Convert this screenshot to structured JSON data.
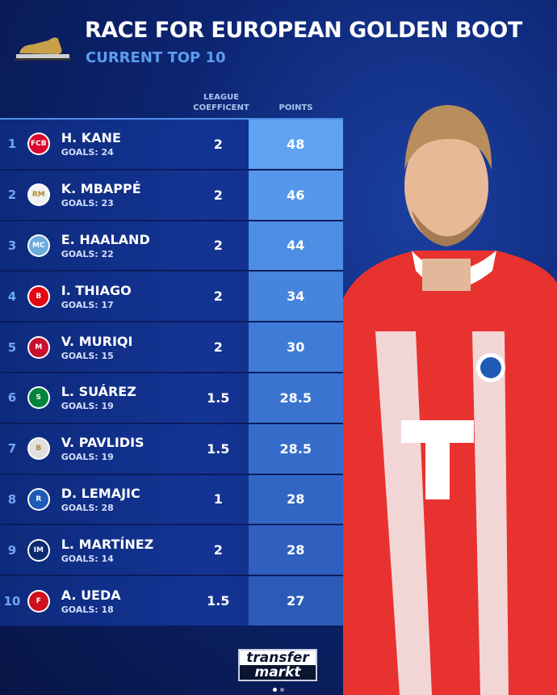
{
  "header": {
    "title": "RACE FOR EUROPEAN GOLDEN BOOT",
    "subtitle": "CURRENT TOP 10"
  },
  "columns": {
    "coefficient": "LEAGUE COEFFICENT",
    "points": "POINTS"
  },
  "rows": [
    {
      "rank": "1",
      "name": "H. KANE",
      "goals": "GOALS: 24",
      "coef": "2",
      "points": "48",
      "crest": "#dc052d",
      "crest_text": "FCB"
    },
    {
      "rank": "2",
      "name": "K. MBAPPÉ",
      "goals": "GOALS: 23",
      "coef": "2",
      "points": "46",
      "crest": "#f2f2f2",
      "crest_text": "RM"
    },
    {
      "rank": "3",
      "name": "E. HAALAND",
      "goals": "GOALS: 22",
      "coef": "2",
      "points": "44",
      "crest": "#6cabdd",
      "crest_text": "MC"
    },
    {
      "rank": "4",
      "name": "I. THIAGO",
      "goals": "GOALS: 17",
      "coef": "2",
      "points": "34",
      "crest": "#e30613",
      "crest_text": "B"
    },
    {
      "rank": "5",
      "name": "V. MURIQI",
      "goals": "GOALS: 15",
      "coef": "2",
      "points": "30",
      "crest": "#c8102e",
      "crest_text": "M"
    },
    {
      "rank": "6",
      "name": "L. SUÁREZ",
      "goals": "GOALS: 19",
      "coef": "1.5",
      "points": "28.5",
      "crest": "#00843d",
      "crest_text": "S"
    },
    {
      "rank": "7",
      "name": "V. PAVLIDIS",
      "goals": "GOALS: 19",
      "coef": "1.5",
      "points": "28.5",
      "crest": "#e0e0e0",
      "crest_text": "B"
    },
    {
      "rank": "8",
      "name": "D. LEMAJIC",
      "goals": "GOALS: 28",
      "coef": "1",
      "points": "28",
      "crest": "#1e5bb8",
      "crest_text": "R"
    },
    {
      "rank": "9",
      "name": "L. MARTÍNEZ",
      "goals": "GOALS: 14",
      "coef": "2",
      "points": "28",
      "crest": "#0a2a6e",
      "crest_text": "IM"
    },
    {
      "rank": "10",
      "name": "A. UEDA",
      "goals": "GOALS: 18",
      "coef": "1.5",
      "points": "27",
      "crest": "#d0101e",
      "crest_text": "F"
    }
  ],
  "logo": {
    "line1": "transfer",
    "line2": "markt"
  },
  "colors": {
    "accent": "#5d9cf0",
    "points_top": "#5fa2f2",
    "points_low": "#2f5fc4"
  }
}
